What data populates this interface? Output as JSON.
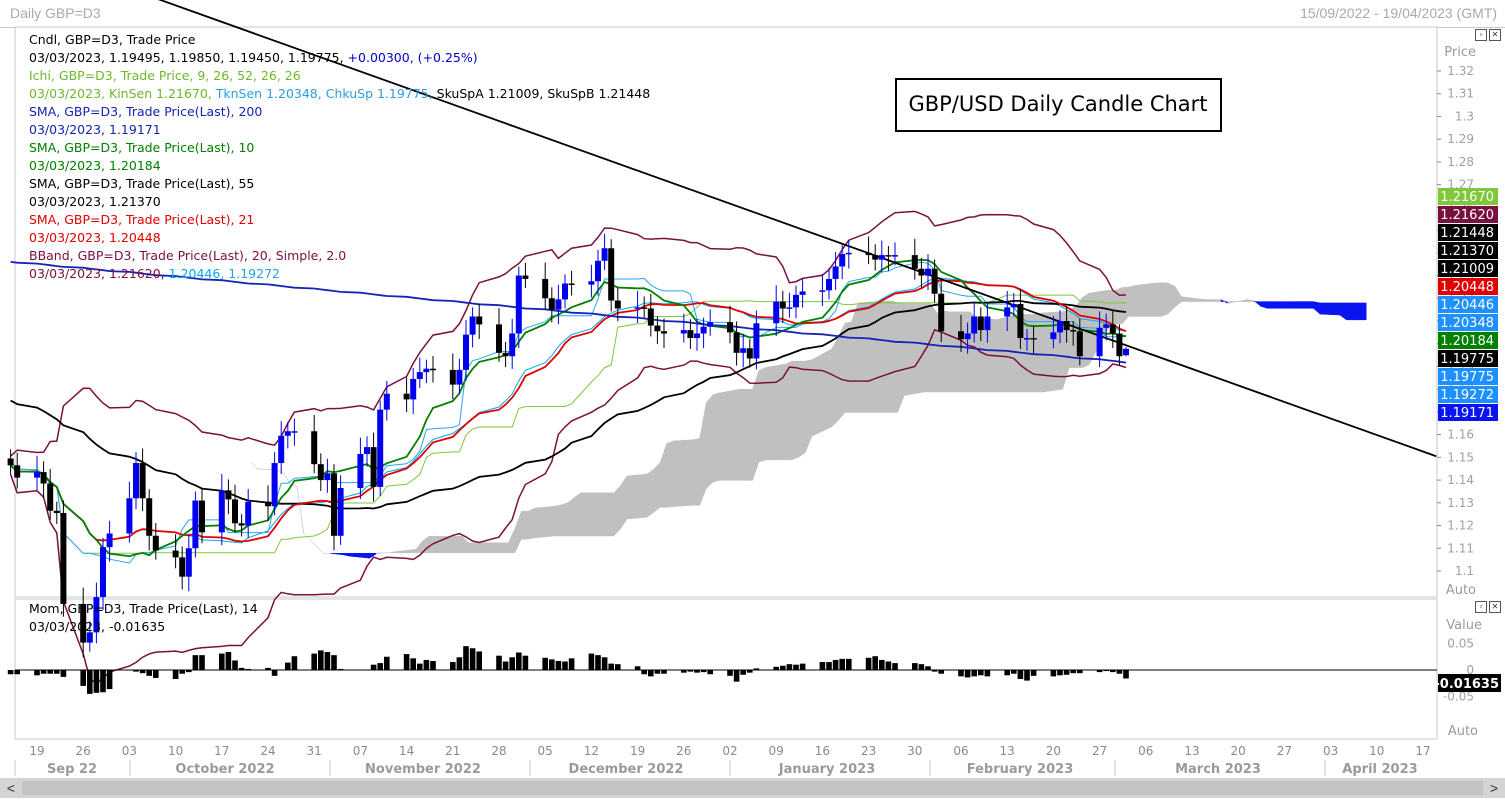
{
  "window": {
    "title": "Daily GBP=D3",
    "date_range": "15/09/2022 - 19/04/2023 (GMT)"
  },
  "colors": {
    "candle_up": "#0000ee",
    "candle_down": "#000000",
    "sma200": "#1424b4",
    "sma10": "#008000",
    "sma55": "#000000",
    "sma21": "#e00000",
    "bband": "#7a1040",
    "bband_mid": "#00aaee",
    "kijun": "#7ec83a",
    "tenkan": "#2aa4f4",
    "cloud_bear": "#0a14f0",
    "cloud_bull": "#c0c0c0"
  },
  "main_panel": {
    "title_box": "GBP/USD Daily Candle Chart",
    "axis_header": "Price",
    "auto_label": "Auto",
    "legend": [
      {
        "text": "Cndl, GBP=D3, Trade Price",
        "color": "#000000"
      },
      {
        "text": "03/03/2023, 1.19495, 1.19850, 1.19450, 1.19775,",
        "color": "#000000",
        "extra": " +0.00300, (+0.25%)",
        "extra_color": "#0000cc"
      },
      {
        "text": "Ichi, GBP=D3, Trade Price,  9, 26, 52, 26, 26",
        "color": "#6cb82c"
      },
      {
        "text": "03/03/2023, KinSen 1.21670,",
        "color": "#6cb82c",
        "extra": " TknSen 1.20348, ChkuSp 1.19775,",
        "extra_color": "#2a9fe0",
        "extra2": " SkuSpA 1.21009, SkuSpB 1.21448",
        "extra2_color": "#000000"
      },
      {
        "text": "SMA, GBP=D3, Trade Price(Last),  200",
        "color": "#1424b4"
      },
      {
        "text": "03/03/2023, 1.19171",
        "color": "#1424b4"
      },
      {
        "text": "SMA, GBP=D3, Trade Price(Last),  10",
        "color": "#008000"
      },
      {
        "text": "03/03/2023, 1.20184",
        "color": "#008000"
      },
      {
        "text": "SMA, GBP=D3, Trade Price(Last),  55",
        "color": "#000000"
      },
      {
        "text": "03/03/2023, 1.21370",
        "color": "#000000"
      },
      {
        "text": "SMA, GBP=D3, Trade Price(Last),  21",
        "color": "#e00000"
      },
      {
        "text": "03/03/2023, 1.20448",
        "color": "#e00000"
      },
      {
        "text": "BBand, GBP=D3, Trade Price(Last),  20, Simple, 2.0",
        "color": "#7a1040"
      },
      {
        "text": "03/03/2023, 1.21620,",
        "color": "#7a1040",
        "extra": " 1.20446,",
        "extra_color": "#00aaee",
        "extra2": " 1.19272",
        "extra2_color": "#2a9fe0"
      }
    ],
    "price_ticks": [
      "1.32",
      "1.31",
      "1.3",
      "1.29",
      "1.28",
      "1.27",
      "1.26",
      "1.25",
      "1.24",
      "1.23",
      "1.22",
      "1.21",
      "1.2",
      "1.19",
      "1.18",
      "1.17",
      "1.16",
      "1.15",
      "1.14",
      "1.13",
      "1.12",
      "1.11",
      "1.1"
    ],
    "price_tags": [
      {
        "label": "1.21670",
        "value": 1.2167,
        "bg": "#7ec83a",
        "fg": "#ffffff"
      },
      {
        "label": "1.21620",
        "value": 1.2162,
        "bg": "#7a1040",
        "fg": "#ffffff"
      },
      {
        "label": "1.21448",
        "value": 1.21448,
        "bg": "#000000",
        "fg": "#ffffff"
      },
      {
        "label": "1.21370",
        "value": 1.2137,
        "bg": "#000000",
        "fg": "#ffffff"
      },
      {
        "label": "1.21009",
        "value": 1.21009,
        "bg": "#000000",
        "fg": "#ffffff"
      },
      {
        "label": "1.20448",
        "value": 1.20448,
        "bg": "#e00000",
        "fg": "#ffffff"
      },
      {
        "label": "1.20446",
        "value": 1.20446,
        "bg": "#1e90ff",
        "fg": "#ffffff"
      },
      {
        "label": "1.20348",
        "value": 1.20348,
        "bg": "#1e90ff",
        "fg": "#ffffff"
      },
      {
        "label": "1.20184",
        "value": 1.20184,
        "bg": "#008000",
        "fg": "#ffffff"
      },
      {
        "label": "1.19775",
        "value": 1.19775,
        "bg": "#000000",
        "fg": "#ffffff"
      },
      {
        "label": "1.19775",
        "value": 1.19775,
        "bg": "#1e90ff",
        "fg": "#ffffff"
      },
      {
        "label": "1.19272",
        "value": 1.19272,
        "bg": "#1e90ff",
        "fg": "#ffffff"
      },
      {
        "label": "1.19171",
        "value": 1.19171,
        "bg": "#0a14f0",
        "fg": "#ffffff"
      }
    ]
  },
  "momentum_panel": {
    "legend": [
      {
        "text": "Mom, GBP=D3, Trade Price(Last),  14",
        "color": "#000000"
      },
      {
        "text": "03/03/2023, -0.01635",
        "color": "#000000"
      }
    ],
    "axis_header": "Value",
    "ticks": [
      "0.05",
      "0",
      "-0.05"
    ],
    "last_value_tag": "-0.01635",
    "auto_label": "Auto"
  },
  "date_axis": {
    "day_labels": [
      "19",
      "26",
      "03",
      "10",
      "17",
      "24",
      "31",
      "07",
      "14",
      "21",
      "28",
      "05",
      "12",
      "19",
      "26",
      "02",
      "09",
      "16",
      "23",
      "30",
      "06",
      "13",
      "20",
      "27",
      "06",
      "13",
      "20",
      "27",
      "03",
      "10",
      "17"
    ],
    "month_labels": [
      "Sep 22",
      "October 2022",
      "November 2022",
      "December 2022",
      "January 2023",
      "February 2023",
      "March 2023",
      "April 2023"
    ]
  },
  "chart_data": {
    "type": "candlestick",
    "symbol": "GBP=D3",
    "interval": "Daily",
    "ylim": [
      1.1,
      1.325
    ],
    "momentum_ylim": [
      -0.08,
      0.08
    ],
    "dates": [
      "2022-09-15",
      "2022-09-16",
      "2022-09-19",
      "2022-09-20",
      "2022-09-21",
      "2022-09-22",
      "2022-09-23",
      "2022-09-26",
      "2022-09-27",
      "2022-09-28",
      "2022-09-29",
      "2022-09-30",
      "2022-10-03",
      "2022-10-04",
      "2022-10-05",
      "2022-10-06",
      "2022-10-07",
      "2022-10-10",
      "2022-10-11",
      "2022-10-12",
      "2022-10-13",
      "2022-10-14",
      "2022-10-17",
      "2022-10-18",
      "2022-10-19",
      "2022-10-20",
      "2022-10-21",
      "2022-10-24",
      "2022-10-25",
      "2022-10-26",
      "2022-10-27",
      "2022-10-28",
      "2022-10-31",
      "2022-11-01",
      "2022-11-02",
      "2022-11-03",
      "2022-11-04",
      "2022-11-07",
      "2022-11-08",
      "2022-11-09",
      "2022-11-10",
      "2022-11-11",
      "2022-11-14",
      "2022-11-15",
      "2022-11-16",
      "2022-11-17",
      "2022-11-18",
      "2022-11-21",
      "2022-11-22",
      "2022-11-23",
      "2022-11-24",
      "2022-11-25",
      "2022-11-28",
      "2022-11-29",
      "2022-11-30",
      "2022-12-01",
      "2022-12-02",
      "2022-12-05",
      "2022-12-06",
      "2022-12-07",
      "2022-12-08",
      "2022-12-09",
      "2022-12-12",
      "2022-12-13",
      "2022-12-14",
      "2022-12-15",
      "2022-12-16",
      "2022-12-19",
      "2022-12-20",
      "2022-12-21",
      "2022-12-22",
      "2022-12-23",
      "2022-12-26",
      "2022-12-27",
      "2022-12-28",
      "2022-12-29",
      "2022-12-30",
      "2023-01-02",
      "2023-01-03",
      "2023-01-04",
      "2023-01-05",
      "2023-01-06",
      "2023-01-09",
      "2023-01-10",
      "2023-01-11",
      "2023-01-12",
      "2023-01-13",
      "2023-01-16",
      "2023-01-17",
      "2023-01-18",
      "2023-01-19",
      "2023-01-20",
      "2023-01-23",
      "2023-01-24",
      "2023-01-25",
      "2023-01-26",
      "2023-01-27",
      "2023-01-30",
      "2023-01-31",
      "2023-02-01",
      "2023-02-02",
      "2023-02-03",
      "2023-02-06",
      "2023-02-07",
      "2023-02-08",
      "2023-02-09",
      "2023-02-10",
      "2023-02-13",
      "2023-02-14",
      "2023-02-15",
      "2023-02-16",
      "2023-02-17",
      "2023-02-20",
      "2023-02-21",
      "2023-02-22",
      "2023-02-23",
      "2023-02-24",
      "2023-02-27",
      "2023-02-28",
      "2023-03-01",
      "2023-03-02",
      "2023-03-03"
    ],
    "close": [
      1.1465,
      1.1411,
      1.1435,
      1.1385,
      1.1265,
      1.1255,
      1.0855,
      1.0685,
      1.073,
      1.0885,
      1.1105,
      1.1165,
      1.132,
      1.1475,
      1.132,
      1.1155,
      1.109,
      1.106,
      1.0975,
      1.11,
      1.131,
      1.117,
      1.1355,
      1.1315,
      1.121,
      1.12,
      1.1305,
      1.1285,
      1.1475,
      1.1595,
      1.1615,
      1.1615,
      1.147,
      1.14,
      1.143,
      1.1155,
      1.1365,
      1.1515,
      1.1545,
      1.137,
      1.171,
      1.178,
      1.1755,
      1.1845,
      1.1875,
      1.189,
      1.1885,
      1.182,
      1.1885,
      1.204,
      1.212,
      1.2085,
      1.196,
      1.1945,
      1.2045,
      1.23,
      1.2285,
      1.22,
      1.215,
      1.2195,
      1.2265,
      1.226,
      1.2275,
      1.2365,
      1.242,
      1.219,
      1.2155,
      1.216,
      1.2155,
      1.208,
      1.2055,
      1.2045,
      1.206,
      1.2025,
      1.2045,
      1.2075,
      1.2095,
      1.205,
      1.196,
      1.198,
      1.1935,
      1.209,
      1.2185,
      1.2155,
      1.216,
      1.2215,
      1.223,
      1.2235,
      1.2285,
      1.234,
      1.2395,
      1.24,
      1.239,
      1.237,
      1.239,
      1.2385,
      1.239,
      1.233,
      1.23,
      1.233,
      1.222,
      1.2055,
      1.202,
      1.2045,
      1.212,
      1.206,
      1.212,
      1.216,
      1.2175,
      1.2025,
      1.2025,
      1.202,
      1.205,
      1.21,
      1.206,
      1.2055,
      1.1945,
      1.207,
      1.2085,
      1.2045,
      1.1945,
      1.1978
    ],
    "momentum": [
      -0.008,
      -0.008,
      -0.01,
      -0.007,
      -0.007,
      -0.007,
      -0.013,
      -0.03,
      -0.045,
      -0.043,
      -0.042,
      -0.036,
      -0.001,
      -0.003,
      -0.006,
      -0.011,
      -0.015,
      -0.017,
      -0.007,
      -0.004,
      0.028,
      0.028,
      0.031,
      0.034,
      0.018,
      0.004,
      0.002,
      0.004,
      -0.011,
      0.001,
      0.014,
      0.026,
      0.031,
      0.037,
      0.034,
      0.028,
      0.002,
      -0.001,
      0.001,
      0.01,
      0.013,
      0.025,
      0.03,
      0.022,
      0.012,
      0.019,
      0.017,
      0.015,
      0.024,
      0.045,
      0.041,
      0.035,
      0.027,
      0.016,
      0.024,
      0.033,
      0.027,
      0.023,
      0.02,
      0.017,
      0.016,
      0.022,
      0.031,
      0.028,
      0.024,
      0.012,
      0.011,
      0.007,
      -0.008,
      -0.012,
      -0.007,
      -0.007,
      -0.005,
      -0.003,
      -0.005,
      -0.004,
      -0.008,
      -0.011,
      -0.022,
      -0.009,
      -0.005,
      0.003,
      0.006,
      0.008,
      0.011,
      0.01,
      0.012,
      0.015,
      0.015,
      0.019,
      0.021,
      0.021,
      0.023,
      0.026,
      0.019,
      0.016,
      0.013,
      0.013,
      0.011,
      0.007,
      -0.003,
      -0.007,
      -0.012,
      -0.014,
      -0.012,
      -0.01,
      -0.012,
      -0.01,
      -0.007,
      -0.017,
      -0.02,
      -0.011,
      -0.012,
      -0.01,
      -0.009,
      -0.006,
      -0.006,
      -0.004,
      -0.002,
      -0.004,
      -0.007,
      -0.016
    ],
    "indicators": {
      "sma200_last": 1.19171,
      "sma10_last": 1.20184,
      "sma55_last": 1.2137,
      "sma21_last": 1.20448,
      "bband_upper_last": 1.2162,
      "bband_mid_last": 1.20446,
      "bband_lower_last": 1.19272,
      "kijun_last": 1.2167,
      "tenkan_last": 1.20348,
      "chikou_last": 1.19775,
      "senkou_a_last": 1.21009,
      "senkou_b_last": 1.21448
    },
    "trendline": {
      "from": [
        "2022-10-07",
        1.352
      ],
      "to": [
        "2023-04-19",
        1.1505
      ]
    }
  }
}
